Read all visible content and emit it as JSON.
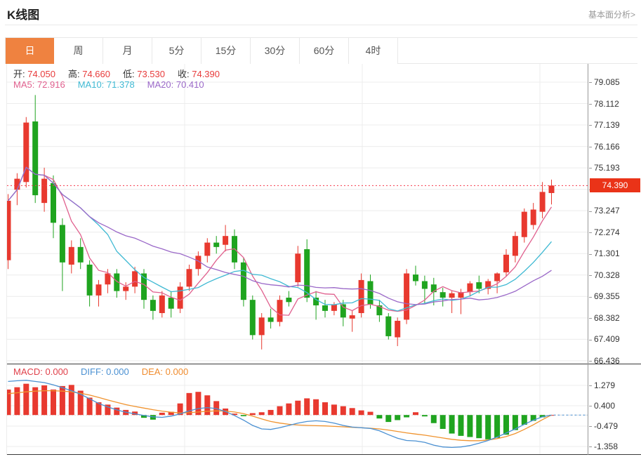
{
  "header": {
    "title": "K线图",
    "link": "基本面分析>"
  },
  "tabs": {
    "items": [
      "日",
      "周",
      "月",
      "5分",
      "15分",
      "30分",
      "60分",
      "4时"
    ],
    "active_index": 0,
    "active_color": "#ef8240"
  },
  "legend": {
    "ohlc": [
      {
        "name": "open",
        "label": "开:",
        "value": "74.050"
      },
      {
        "name": "high",
        "label": "高:",
        "value": "74.660"
      },
      {
        "name": "low",
        "label": "低:",
        "value": "73.530"
      },
      {
        "name": "close",
        "label": "收:",
        "value": "74.390"
      }
    ],
    "ohlc_value_color": "#e83b3b",
    "ma": [
      {
        "name": "ma5",
        "label": "MA5:",
        "value": "72.916",
        "color": "#e0608e"
      },
      {
        "name": "ma10",
        "label": "MA10:",
        "value": "71.378",
        "color": "#3fb9d3"
      },
      {
        "name": "ma20",
        "label": "MA20:",
        "value": "70.410",
        "color": "#9a68c8"
      }
    ],
    "macd": [
      {
        "name": "macd",
        "label": "MACD:",
        "value": "0.000",
        "color": "#e0404a"
      },
      {
        "name": "diff",
        "label": "DIFF:",
        "value": "0.000",
        "color": "#4a90d2"
      },
      {
        "name": "dea",
        "label": "DEA:",
        "value": "0.000",
        "color": "#f08c2e"
      }
    ]
  },
  "price_axis": {
    "ticks": [
      "79.085",
      "78.112",
      "77.139",
      "76.166",
      "75.193",
      "74.220",
      "73.247",
      "72.274",
      "71.301",
      "70.328",
      "69.355",
      "68.382",
      "67.409",
      "66.436"
    ],
    "last_price": "74.390",
    "badge_color": "#ea3318"
  },
  "macd_axis": {
    "ticks": [
      "1.279",
      "0.400",
      "-0.479",
      "-1.358"
    ]
  },
  "chart_data": {
    "type": "candlestick",
    "title": "K线图",
    "timeframe": "日",
    "legend_current": {
      "open": 74.05,
      "high": 74.66,
      "low": 73.53,
      "close": 74.39,
      "ma5": 72.916,
      "ma10": 71.378,
      "ma20": 70.41
    },
    "up_color": "#e8392f",
    "down_color": "#1fa41f",
    "price_axis": {
      "max_tick": 79.085,
      "min_tick": 66.436,
      "tick_step": 0.973
    },
    "last_price": 74.39,
    "ma_periods": [
      5,
      10,
      20
    ],
    "candles": [
      [
        71.0,
        74.0,
        70.6,
        73.7
      ],
      [
        74.2,
        74.95,
        73.5,
        74.7
      ],
      [
        74.55,
        77.5,
        74.3,
        77.25
      ],
      [
        77.3,
        78.5,
        73.6,
        73.95
      ],
      [
        73.6,
        75.2,
        73.2,
        74.7
      ],
      [
        74.5,
        74.85,
        72.0,
        72.7
      ],
      [
        72.6,
        72.9,
        69.6,
        70.9
      ],
      [
        70.8,
        71.9,
        70.4,
        71.6
      ],
      [
        71.6,
        72.0,
        70.6,
        70.9
      ],
      [
        70.8,
        71.0,
        68.9,
        69.4
      ],
      [
        69.4,
        70.1,
        68.9,
        69.9
      ],
      [
        69.9,
        70.6,
        69.5,
        70.4
      ],
      [
        70.4,
        70.6,
        69.3,
        69.6
      ],
      [
        69.6,
        70.0,
        69.2,
        69.8
      ],
      [
        69.8,
        70.7,
        69.5,
        70.5
      ],
      [
        70.4,
        70.6,
        68.8,
        69.2
      ],
      [
        69.2,
        69.4,
        68.3,
        68.7
      ],
      [
        68.6,
        69.6,
        68.4,
        69.4
      ],
      [
        69.3,
        69.6,
        68.4,
        68.8
      ],
      [
        68.8,
        70.0,
        68.6,
        69.8
      ],
      [
        69.8,
        70.8,
        69.6,
        70.6
      ],
      [
        70.6,
        71.4,
        70.3,
        71.2
      ],
      [
        71.2,
        72.0,
        70.9,
        71.8
      ],
      [
        71.8,
        72.1,
        71.3,
        71.6
      ],
      [
        71.7,
        72.6,
        71.4,
        72.1
      ],
      [
        72.1,
        72.4,
        70.6,
        70.9
      ],
      [
        70.9,
        71.1,
        68.9,
        69.2
      ],
      [
        69.2,
        69.4,
        67.4,
        67.6
      ],
      [
        67.6,
        68.6,
        66.95,
        68.4
      ],
      [
        68.4,
        68.8,
        67.9,
        68.2
      ],
      [
        68.2,
        69.4,
        68.0,
        69.2
      ],
      [
        69.3,
        69.6,
        68.9,
        69.1
      ],
      [
        70.0,
        71.65,
        69.8,
        71.3
      ],
      [
        71.5,
        71.95,
        69.1,
        69.3
      ],
      [
        69.3,
        69.6,
        68.3,
        68.95
      ],
      [
        68.95,
        69.2,
        68.4,
        68.7
      ],
      [
        68.7,
        69.1,
        68.5,
        69.0
      ],
      [
        69.0,
        69.2,
        68.0,
        68.4
      ],
      [
        68.35,
        68.7,
        67.75,
        68.5
      ],
      [
        68.6,
        70.4,
        68.4,
        70.1
      ],
      [
        70.05,
        70.35,
        68.8,
        69.0
      ],
      [
        68.95,
        69.2,
        68.2,
        68.5
      ],
      [
        68.45,
        68.6,
        67.4,
        67.55
      ],
      [
        67.5,
        68.4,
        67.1,
        68.25
      ],
      [
        68.3,
        70.6,
        68.1,
        70.4
      ],
      [
        70.35,
        70.75,
        69.85,
        70.05
      ],
      [
        70.05,
        70.3,
        69.0,
        69.7
      ],
      [
        69.9,
        70.2,
        68.95,
        69.55
      ],
      [
        69.55,
        69.75,
        68.9,
        69.3
      ],
      [
        69.3,
        69.6,
        68.6,
        69.5
      ],
      [
        69.3,
        69.7,
        68.55,
        69.55
      ],
      [
        69.55,
        70.05,
        69.35,
        69.95
      ],
      [
        70.0,
        70.3,
        69.5,
        69.7
      ],
      [
        69.7,
        70.15,
        69.45,
        70.05
      ],
      [
        70.05,
        70.45,
        69.5,
        70.4
      ],
      [
        70.45,
        71.5,
        70.25,
        71.25
      ],
      [
        71.2,
        72.3,
        70.9,
        72.1
      ],
      [
        72.05,
        73.35,
        71.8,
        73.2
      ],
      [
        72.6,
        73.6,
        72.4,
        73.3
      ],
      [
        73.2,
        74.55,
        72.9,
        74.1
      ],
      [
        74.05,
        74.66,
        73.53,
        74.39
      ]
    ],
    "macd_panel": {
      "axis_ticks": [
        1.279,
        0.4,
        -0.479,
        -1.358
      ],
      "current": {
        "macd": 0.0,
        "diff": 0.0,
        "dea": 0.0
      },
      "hist": [
        1.1,
        1.2,
        1.35,
        1.2,
        1.28,
        1.1,
        1.25,
        1.3,
        1.05,
        0.75,
        0.55,
        0.45,
        0.32,
        0.22,
        0.15,
        -0.12,
        -0.2,
        0.1,
        0.14,
        0.5,
        0.95,
        1.0,
        0.85,
        0.6,
        0.28,
        0.06,
        -0.05,
        0.08,
        0.12,
        0.22,
        0.38,
        0.5,
        0.62,
        0.72,
        0.68,
        0.55,
        0.45,
        0.38,
        0.3,
        0.2,
        0.14,
        -0.15,
        -0.3,
        -0.22,
        -0.1,
        0.12,
        -0.06,
        -0.35,
        -0.6,
        -0.8,
        -0.9,
        -0.95,
        -1.0,
        -1.05,
        -0.98,
        -0.85,
        -0.65,
        -0.42,
        -0.25,
        -0.1,
        0.0
      ],
      "diff": [
        1.45,
        1.48,
        1.5,
        1.45,
        1.4,
        1.3,
        1.18,
        1.05,
        0.9,
        0.7,
        0.5,
        0.35,
        0.22,
        0.12,
        0.05,
        -0.02,
        -0.08,
        -0.1,
        -0.05,
        0.05,
        0.18,
        0.28,
        0.32,
        0.28,
        0.15,
        -0.02,
        -0.22,
        -0.45,
        -0.6,
        -0.62,
        -0.55,
        -0.45,
        -0.35,
        -0.28,
        -0.25,
        -0.28,
        -0.35,
        -0.45,
        -0.52,
        -0.55,
        -0.58,
        -0.68,
        -0.85,
        -1.0,
        -1.1,
        -1.12,
        -1.18,
        -1.3,
        -1.38,
        -1.4,
        -1.38,
        -1.32,
        -1.22,
        -1.1,
        -0.95,
        -0.78,
        -0.6,
        -0.4,
        -0.22,
        -0.08,
        0.0
      ],
      "dea": [
        0.92,
        0.96,
        1.0,
        1.03,
        1.05,
        1.05,
        1.03,
        1.0,
        0.94,
        0.86,
        0.76,
        0.65,
        0.55,
        0.45,
        0.37,
        0.3,
        0.23,
        0.17,
        0.12,
        0.09,
        0.1,
        0.13,
        0.16,
        0.18,
        0.17,
        0.13,
        0.06,
        -0.05,
        -0.17,
        -0.28,
        -0.35,
        -0.4,
        -0.43,
        -0.45,
        -0.46,
        -0.47,
        -0.49,
        -0.51,
        -0.53,
        -0.55,
        -0.57,
        -0.6,
        -0.65,
        -0.71,
        -0.77,
        -0.82,
        -0.87,
        -0.93,
        -0.99,
        -1.05,
        -1.09,
        -1.11,
        -1.11,
        -1.08,
        -1.02,
        -0.93,
        -0.8,
        -0.62,
        -0.42,
        -0.2,
        0.0
      ],
      "diff_color": "#4a90d2",
      "dea_color": "#f0932e"
    },
    "grid_color": "#ececec",
    "dotted_price_line_color": "#f5384a"
  }
}
